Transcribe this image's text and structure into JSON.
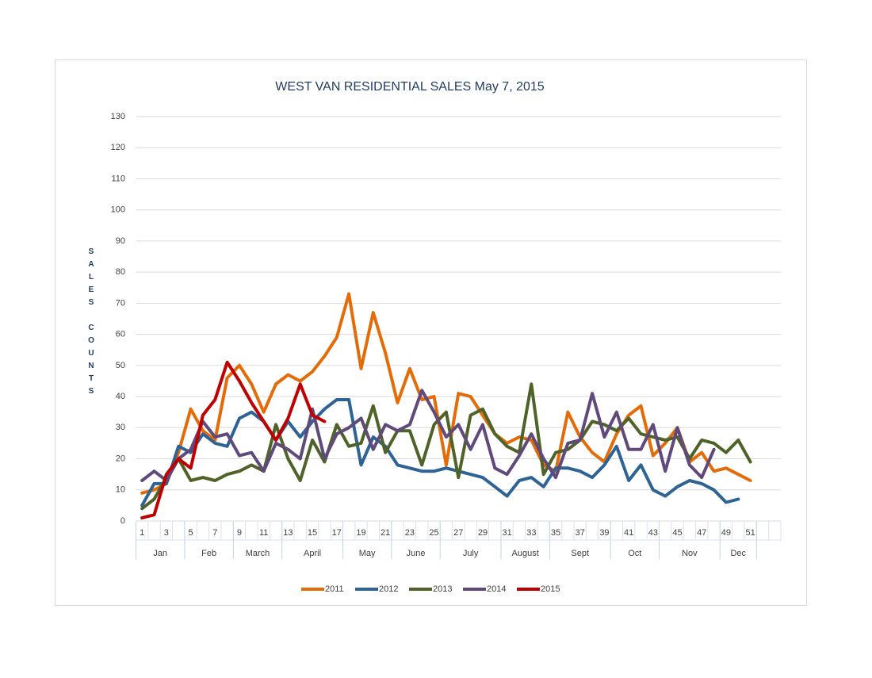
{
  "chart_data": {
    "type": "line",
    "title": "WEST VAN RESIDENTIAL SALES  May 7, 2015",
    "ylabel": "SALES COUNTS",
    "categories": [
      1,
      null,
      3,
      null,
      5,
      null,
      7,
      null,
      9,
      null,
      11,
      null,
      13,
      null,
      15,
      null,
      17,
      null,
      19,
      null,
      21,
      null,
      23,
      null,
      25,
      null,
      27,
      null,
      29,
      null,
      31,
      null,
      33,
      null,
      35,
      null,
      37,
      null,
      39,
      null,
      41,
      null,
      43,
      null,
      45,
      null,
      47,
      null,
      49,
      null,
      51,
      null,
      null
    ],
    "month_groups": [
      {
        "label": "Jan",
        "weeks": [
          1,
          4
        ]
      },
      {
        "label": "Feb",
        "weeks": [
          5,
          8
        ]
      },
      {
        "label": "March",
        "weeks": [
          9,
          12
        ]
      },
      {
        "label": "April",
        "weeks": [
          13,
          17
        ]
      },
      {
        "label": "May",
        "weeks": [
          18,
          21
        ]
      },
      {
        "label": "June",
        "weeks": [
          22,
          25
        ]
      },
      {
        "label": "July",
        "weeks": [
          26,
          30
        ]
      },
      {
        "label": "August",
        "weeks": [
          31,
          34
        ]
      },
      {
        "label": "Sept",
        "weeks": [
          35,
          39
        ]
      },
      {
        "label": "Oct",
        "weeks": [
          40,
          43
        ]
      },
      {
        "label": "Nov",
        "weeks": [
          44,
          48
        ]
      },
      {
        "label": "Dec",
        "weeks": [
          49,
          51
        ]
      }
    ],
    "series": [
      {
        "name": "2011",
        "color": "#e36c09",
        "values": [
          9,
          10,
          12,
          22,
          36,
          29,
          26,
          46,
          50,
          44,
          35,
          44,
          47,
          45,
          48,
          53,
          59,
          73,
          49,
          67,
          54,
          38,
          49,
          39,
          40,
          18,
          41,
          40,
          34,
          28,
          25,
          27,
          26,
          18,
          16,
          35,
          27,
          22,
          19,
          28,
          34,
          37,
          21,
          25,
          30,
          19,
          22,
          16,
          17,
          15,
          13,
          null,
          null
        ]
      },
      {
        "name": "2012",
        "color": "#2e6395",
        "values": [
          5,
          12,
          12,
          24,
          22,
          28,
          25,
          24,
          33,
          35,
          32,
          26,
          32,
          27,
          32,
          36,
          39,
          39,
          18,
          27,
          24,
          18,
          17,
          16,
          16,
          17,
          16,
          15,
          14,
          11,
          8,
          13,
          14,
          11,
          17,
          17,
          16,
          14,
          18,
          24,
          13,
          18,
          10,
          8,
          11,
          13,
          12,
          10,
          6,
          7,
          null,
          null,
          null
        ]
      },
      {
        "name": "2013",
        "color": "#4f6228",
        "values": [
          4,
          7,
          14,
          20,
          13,
          14,
          13,
          15,
          16,
          18,
          16,
          31,
          20,
          13,
          26,
          19,
          31,
          24,
          25,
          37,
          22,
          29,
          29,
          18,
          31,
          35,
          14,
          34,
          36,
          28,
          24,
          22,
          44,
          15,
          22,
          23,
          26,
          32,
          31,
          29,
          33,
          28,
          27,
          26,
          27,
          20,
          26,
          25,
          22,
          26,
          19,
          null,
          null
        ]
      },
      {
        "name": "2014",
        "color": "#604a7b",
        "values": [
          13,
          16,
          13,
          20,
          23,
          32,
          27,
          28,
          21,
          22,
          16,
          25,
          23,
          20,
          36,
          20,
          28,
          30,
          33,
          23,
          31,
          29,
          31,
          42,
          35,
          27,
          31,
          23,
          31,
          17,
          15,
          21,
          28,
          20,
          14,
          25,
          26,
          41,
          27,
          35,
          23,
          23,
          31,
          16,
          30,
          18,
          14,
          23,
          null,
          null,
          null,
          null,
          null
        ]
      },
      {
        "name": "2015",
        "color": "#c00000",
        "values": [
          1,
          2,
          15,
          20,
          17,
          34,
          39,
          51,
          45,
          38,
          32,
          26,
          33,
          44,
          34,
          32,
          null,
          null,
          null,
          null,
          null,
          null,
          null,
          null,
          null,
          null,
          null,
          null,
          null,
          null,
          null,
          null,
          null,
          null,
          null,
          null,
          null,
          null,
          null,
          null,
          null,
          null,
          null,
          null,
          null,
          null,
          null,
          null,
          null,
          null,
          null,
          null,
          null
        ]
      }
    ],
    "ylim": [
      0,
      130
    ],
    "yticks": [
      0,
      10,
      20,
      30,
      40,
      50,
      60,
      70,
      80,
      90,
      100,
      110,
      120,
      130
    ],
    "grid": true,
    "legend": "bottom"
  }
}
